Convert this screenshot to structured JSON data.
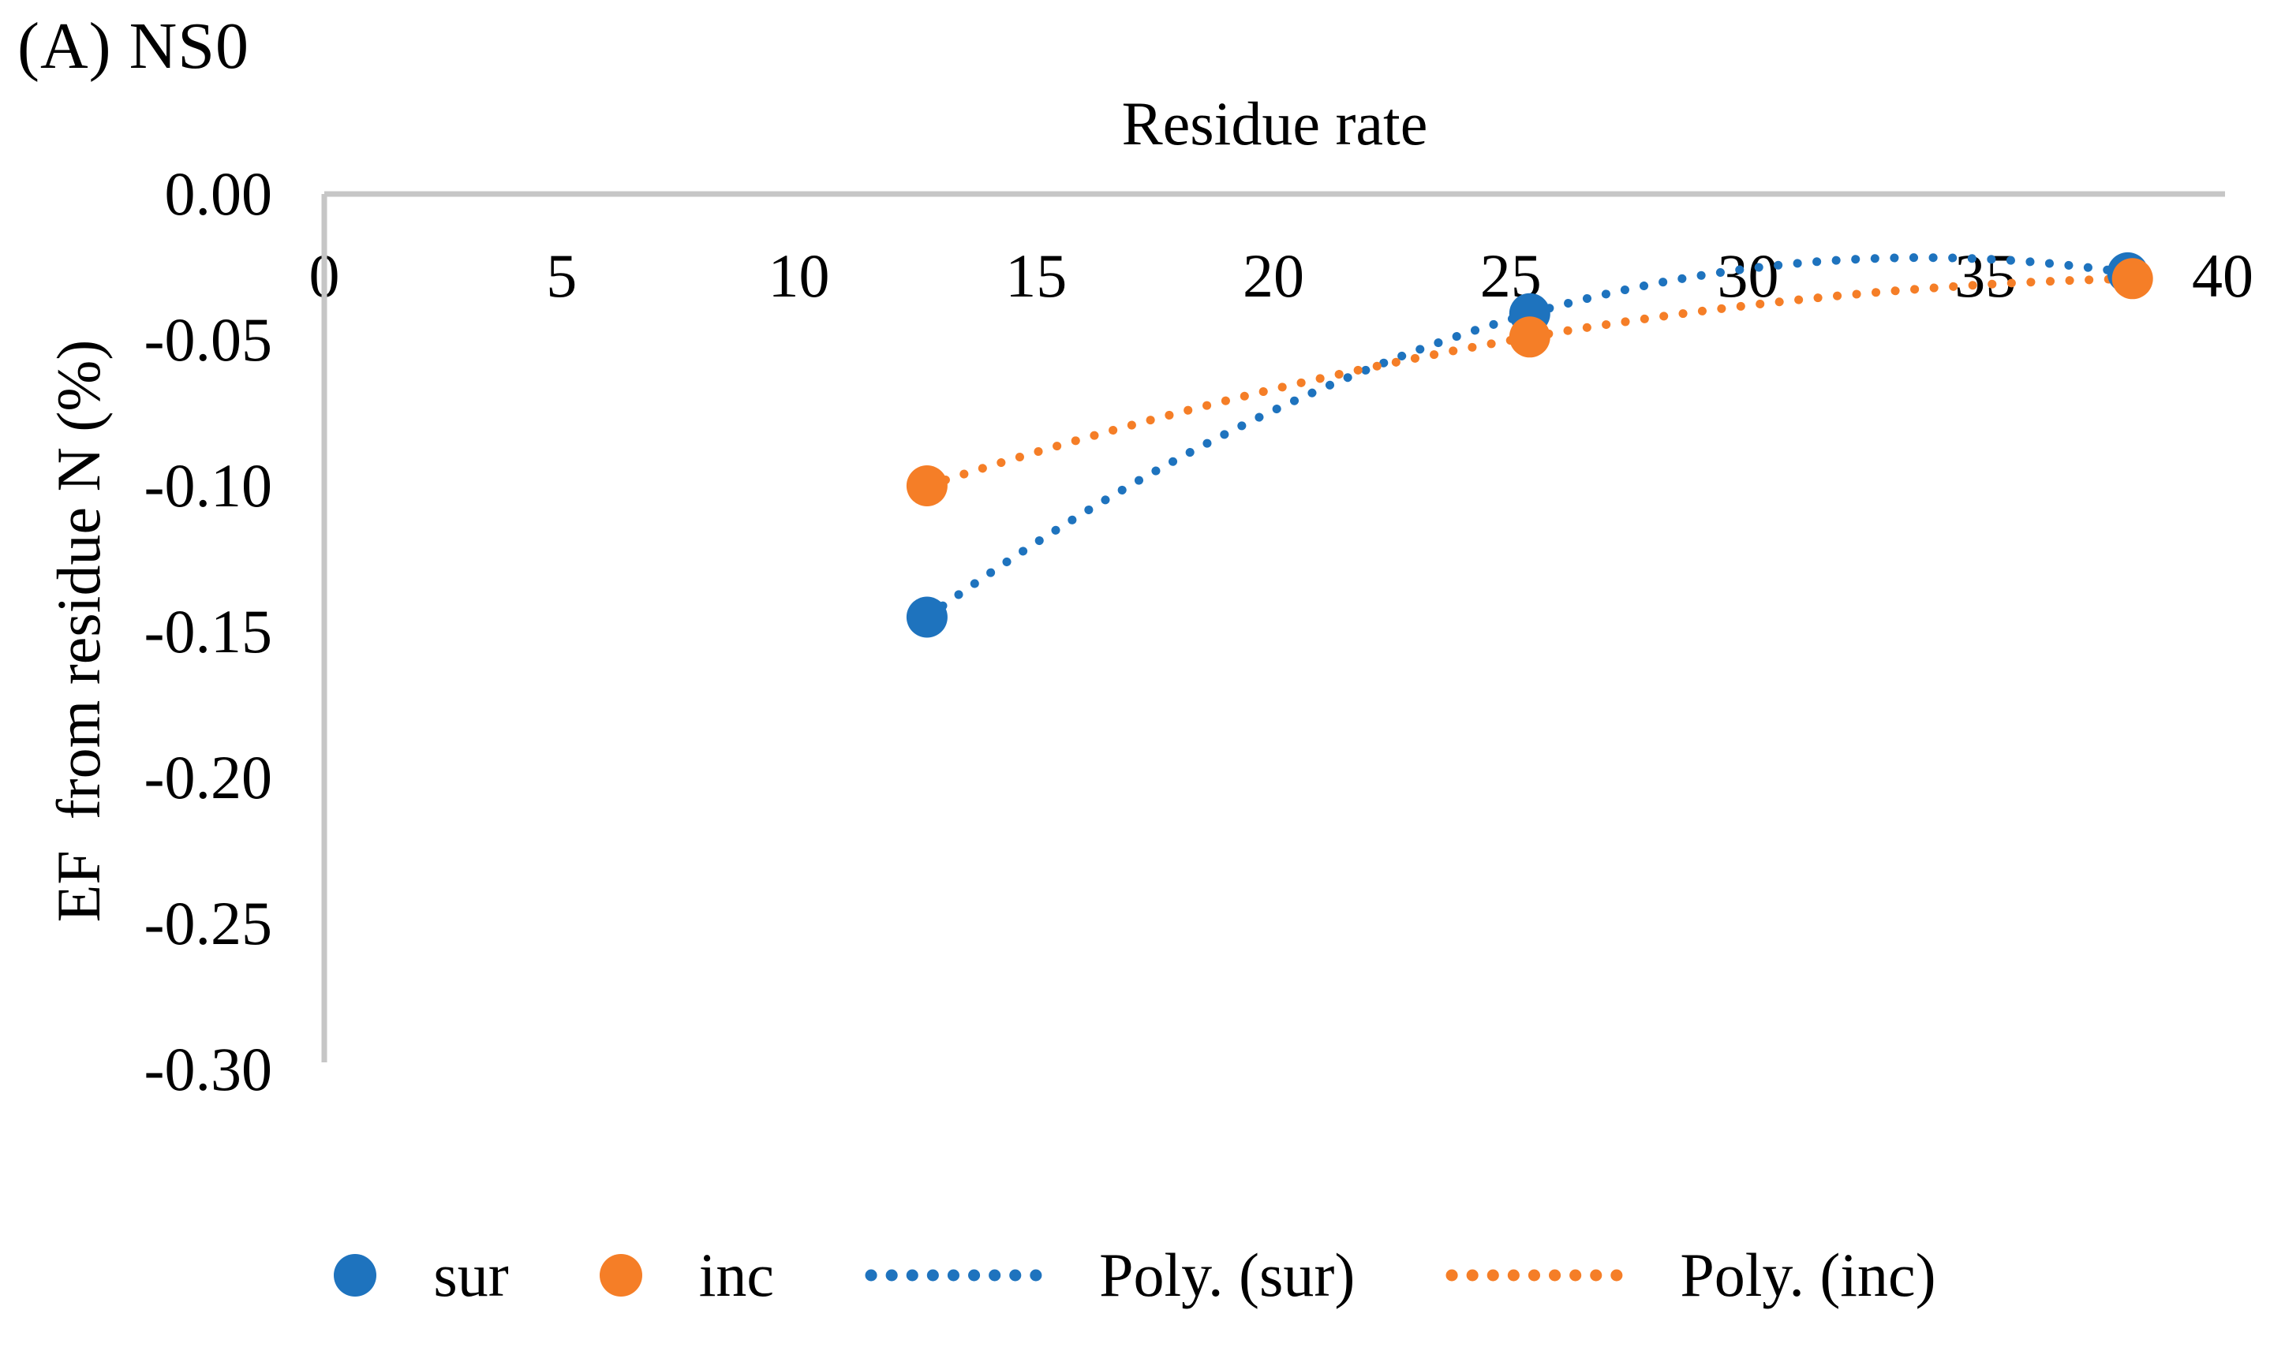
{
  "chart_data": {
    "type": "scatter",
    "title": "(A) NS0",
    "x_axis": {
      "title": "Residue rate",
      "range": [
        0,
        40
      ],
      "ticks": [
        0,
        5,
        10,
        15,
        20,
        25,
        30,
        35,
        40
      ],
      "tick_labels": [
        "0",
        "5",
        "10",
        "15",
        "20",
        "25",
        "30",
        "35",
        "40"
      ],
      "position": "top"
    },
    "y_axis": {
      "title": "EF  from residue N (%)",
      "range": [
        -0.3,
        0.0
      ],
      "ticks": [
        0.0,
        -0.05,
        -0.1,
        -0.15,
        -0.2,
        -0.25,
        -0.3
      ],
      "tick_labels": [
        "0.00",
        "-0.05",
        "-0.10",
        "-0.15",
        "-0.20",
        "-0.25",
        "-0.30"
      ]
    },
    "grid": false,
    "axis_color": "#C6C6C6",
    "series": [
      {
        "name": "sur",
        "color": "#1E73BE",
        "marker": "circle",
        "points": [
          [
            12.7,
            -0.145
          ],
          [
            25.4,
            -0.041
          ],
          [
            38.0,
            -0.027
          ]
        ]
      },
      {
        "name": "inc",
        "color": "#F57E27",
        "marker": "circle",
        "points": [
          [
            12.7,
            -0.1
          ],
          [
            25.4,
            -0.049
          ],
          [
            38.1,
            -0.029
          ]
        ]
      }
    ],
    "trendlines": [
      {
        "name": "Poly. (sur)",
        "series": "sur",
        "order": 2,
        "style": "dotted",
        "color": "#1E73BE"
      },
      {
        "name": "Poly. (inc)",
        "series": "inc",
        "order": 2,
        "style": "dotted",
        "color": "#F57E27"
      }
    ],
    "legend": {
      "position": "bottom",
      "items": [
        {
          "label": "sur",
          "symbol": "dot",
          "color": "#1E73BE"
        },
        {
          "label": "inc",
          "symbol": "dot",
          "color": "#F57E27"
        },
        {
          "label": "Poly. (sur)",
          "symbol": "dotted-line",
          "color": "#1E73BE"
        },
        {
          "label": "Poly. (inc)",
          "symbol": "dotted-line",
          "color": "#F57E27"
        }
      ]
    }
  }
}
